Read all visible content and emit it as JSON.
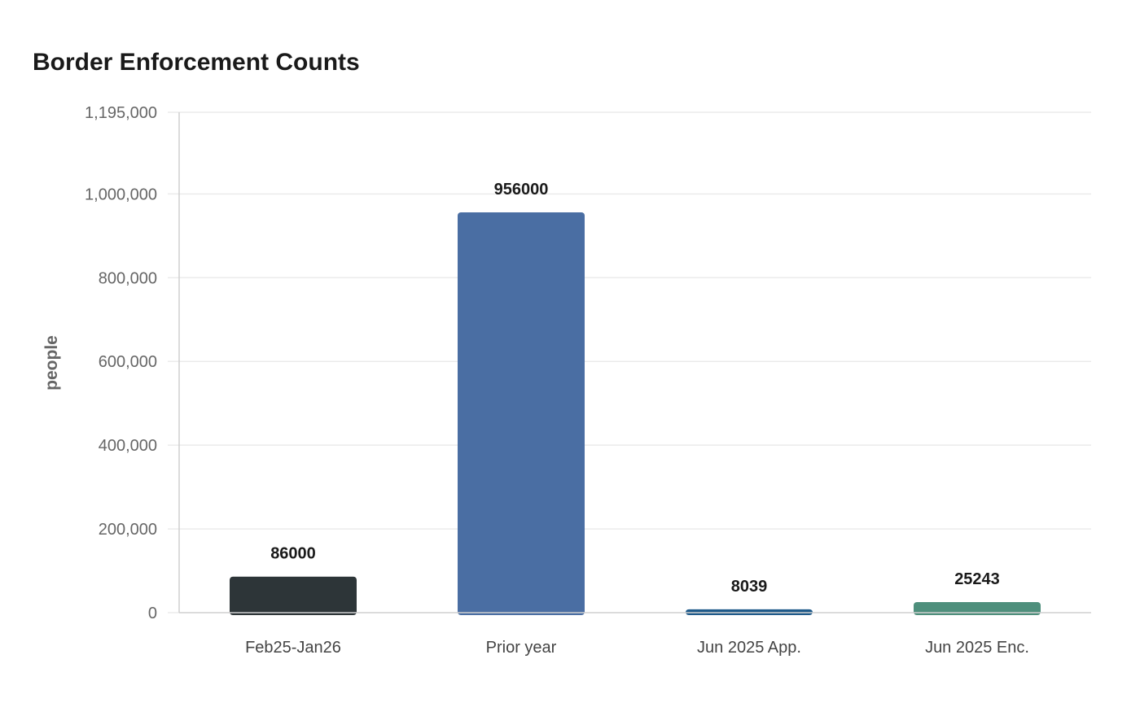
{
  "chart_data": {
    "type": "bar",
    "title": "Border Enforcement Counts",
    "xlabel": "",
    "ylabel": "people",
    "ylim": [
      0,
      1195000
    ],
    "yticks": [
      0,
      200000,
      400000,
      600000,
      800000,
      1000000,
      1195000
    ],
    "ytick_labels": [
      "0",
      "200,000",
      "400,000",
      "600,000",
      "800,000",
      "1,000,000",
      "1,195,000"
    ],
    "categories": [
      "Feb25-Jan26",
      "Prior year",
      "Jun 2025 App.",
      "Jun 2025 Enc."
    ],
    "values": [
      86000,
      956000,
      8039,
      25243
    ],
    "value_labels": [
      "86000",
      "956000",
      "8039",
      "25243"
    ],
    "bar_colors": [
      "#2d3538",
      "#4a6ea3",
      "#1f5a8a",
      "#4e8f7c"
    ],
    "grid": true,
    "legend": false
  }
}
